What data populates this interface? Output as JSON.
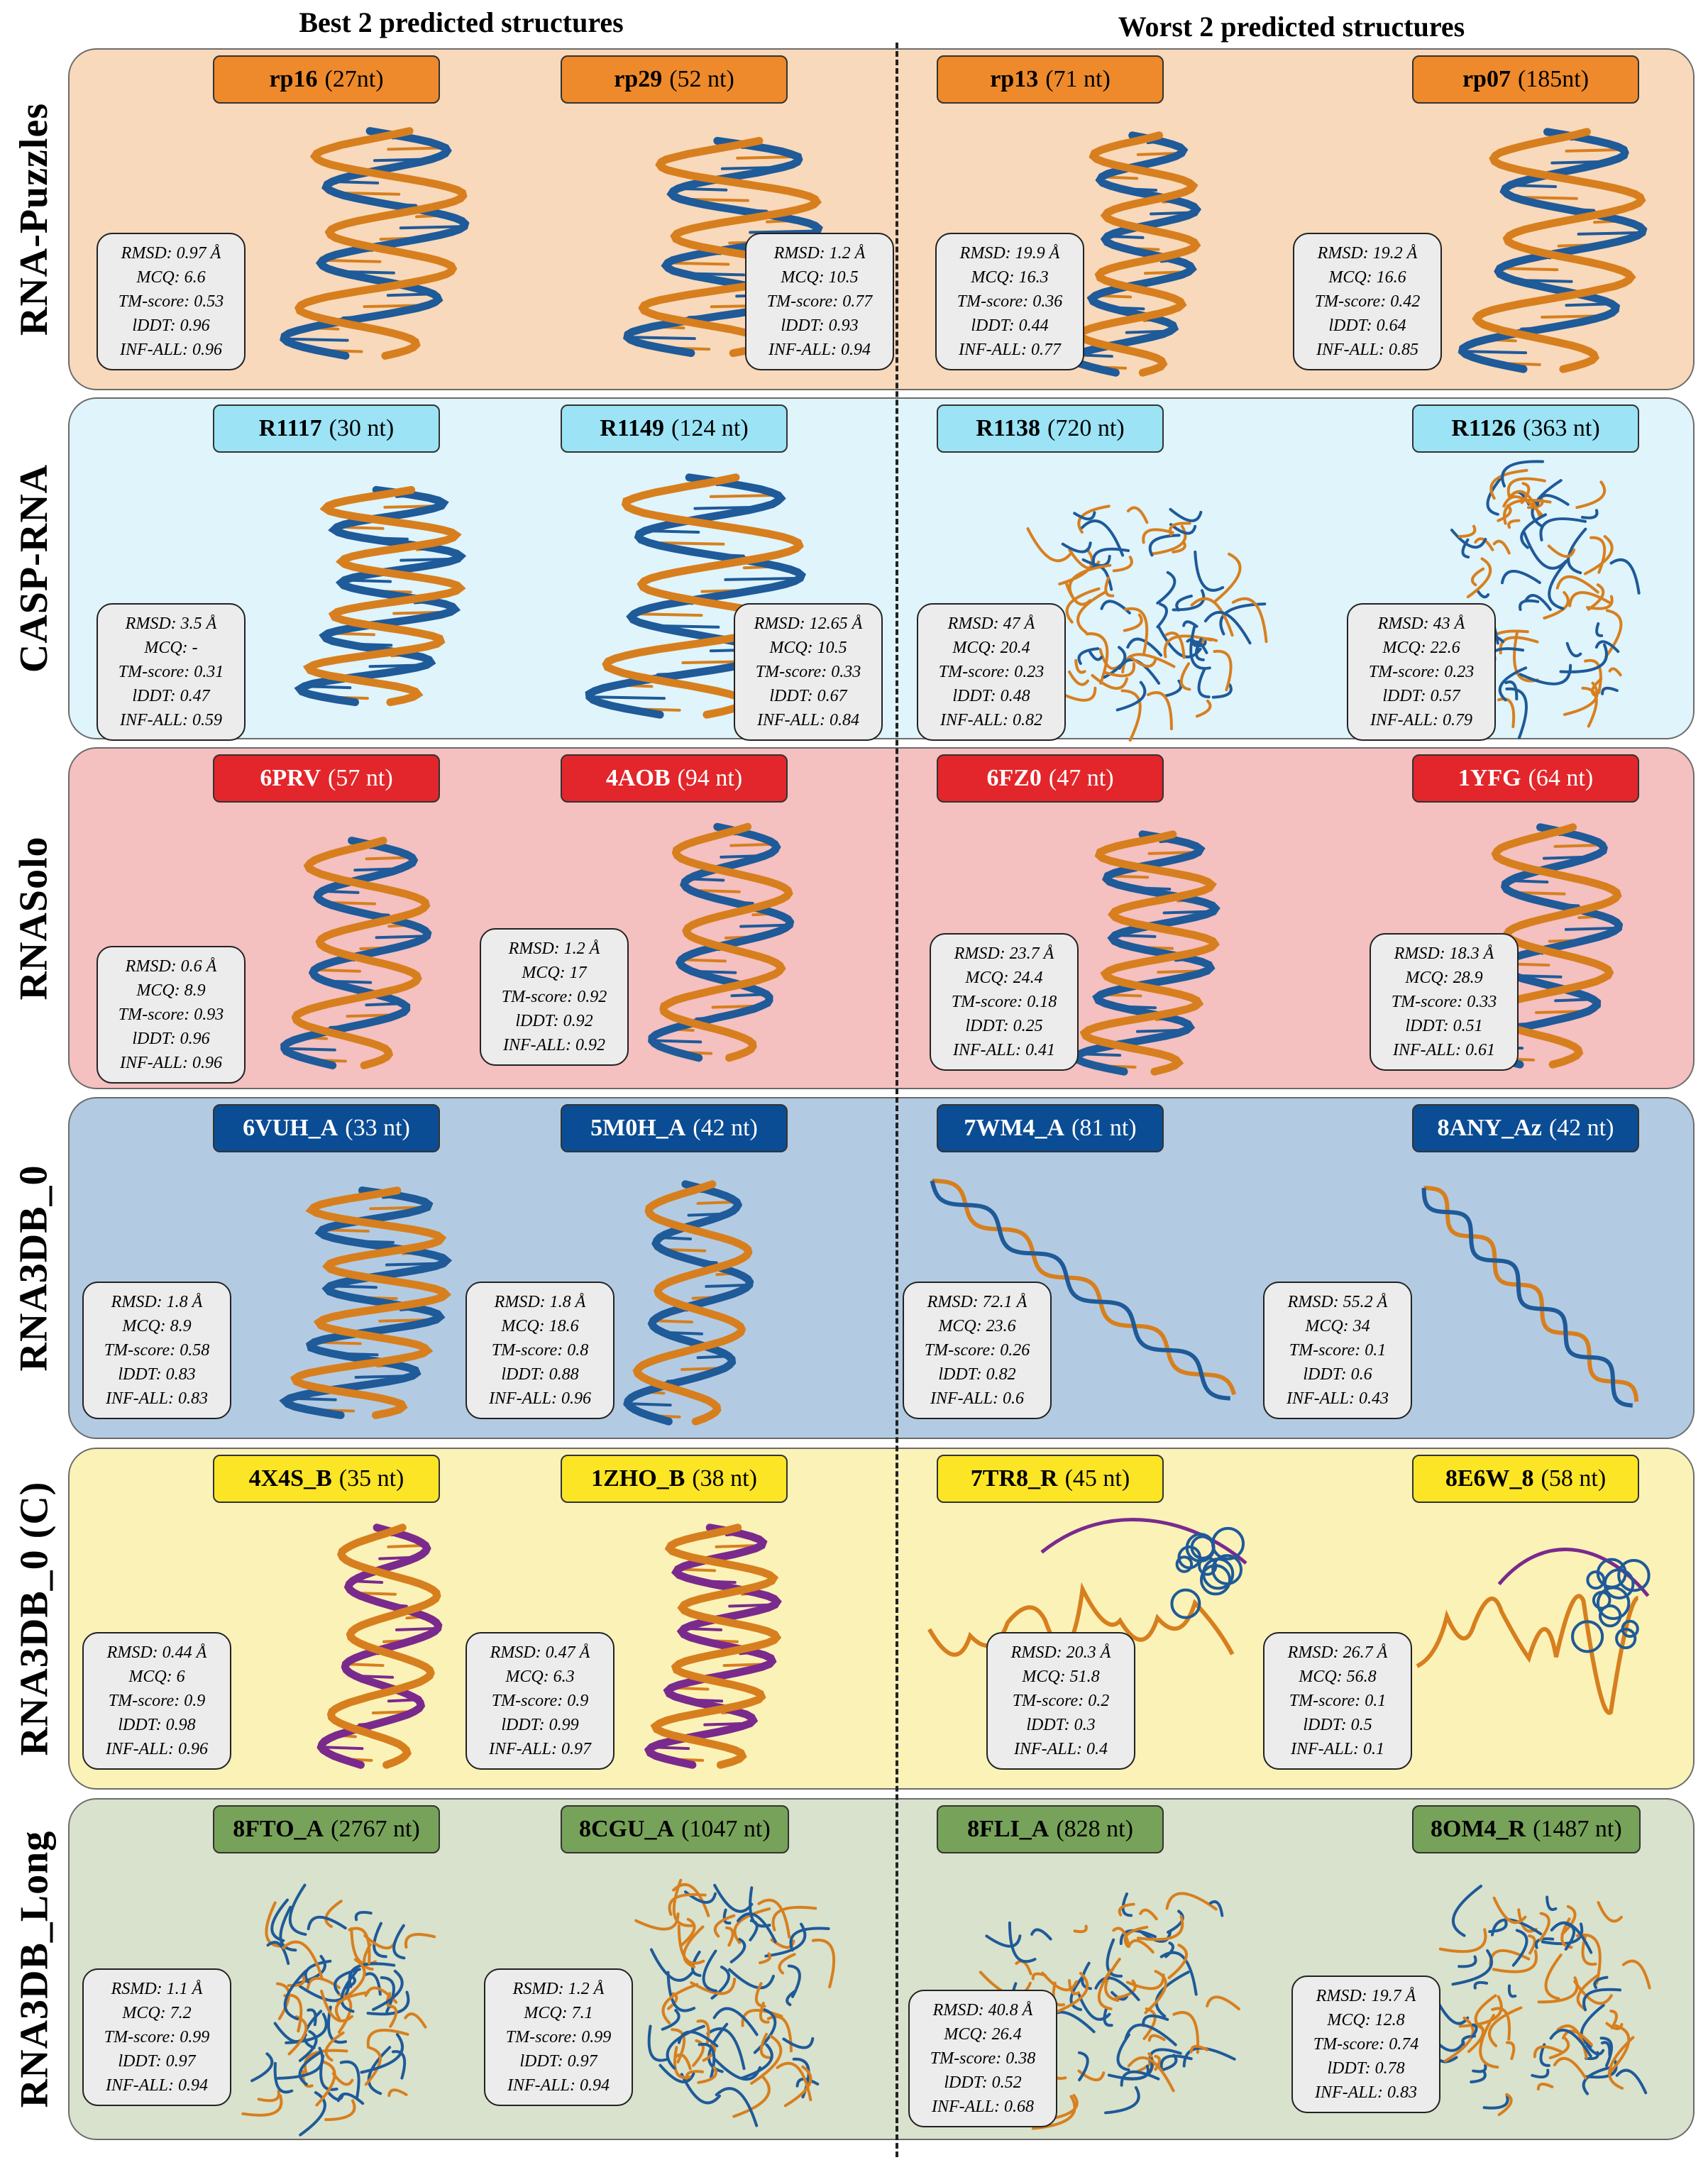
{
  "headers": {
    "best": "Best 2 predicted structures",
    "worst": "Worst 2 predicted structures"
  },
  "colors": {
    "native_strand": "#1f5a99",
    "predicted_strand": "#d77f1e",
    "alt_strand": "#7a2a8c"
  },
  "rows": [
    {
      "label": "RNA-Puzzles",
      "panel_color": "#f8d9bb",
      "tag_color": "#ee8a2b",
      "tag_text_color": "#000000",
      "entries": [
        {
          "id": "rp16",
          "length": "(27nt)",
          "metrics": [
            "RMSD: 0.97 Å",
            "MCQ: 6.6",
            "TM-score: 0.53",
            "lDDT: 0.96",
            "INF-ALL: 0.96"
          ]
        },
        {
          "id": "rp29",
          "length": "(52 nt)",
          "metrics": [
            "RMSD: 1.2 Å",
            "MCQ: 10.5",
            "TM-score: 0.77",
            "lDDT: 0.93",
            "INF-ALL: 0.94"
          ]
        },
        {
          "id": "rp13",
          "length": "(71 nt)",
          "metrics": [
            "RMSD: 19.9 Å",
            "MCQ: 16.3",
            "TM-score: 0.36",
            "lDDT: 0.44",
            "INF-ALL: 0.77"
          ]
        },
        {
          "id": "rp07",
          "length": "(185nt)",
          "metrics": [
            "RMSD: 19.2 Å",
            "MCQ: 16.6",
            "TM-score: 0.42",
            "lDDT: 0.64",
            "INF-ALL: 0.85"
          ]
        }
      ]
    },
    {
      "label": "CASP-RNA",
      "panel_color": "#dff4fb",
      "tag_color": "#9be3f5",
      "tag_text_color": "#000000",
      "entries": [
        {
          "id": "R1117",
          "length": "(30 nt)",
          "metrics": [
            "RMSD: 3.5 Å",
            "MCQ: -",
            "TM-score: 0.31",
            "lDDT: 0.47",
            "INF-ALL: 0.59"
          ]
        },
        {
          "id": "R1149",
          "length": "(124 nt)",
          "metrics": [
            "RMSD: 12.65 Å",
            "MCQ: 10.5",
            "TM-score: 0.33",
            "lDDT: 0.67",
            "INF-ALL: 0.84"
          ]
        },
        {
          "id": "R1138",
          "length": "(720 nt)",
          "metrics": [
            "RMSD: 47 Å",
            "MCQ: 20.4",
            "TM-score: 0.23",
            "lDDT: 0.48",
            "INF-ALL: 0.82"
          ]
        },
        {
          "id": "R1126",
          "length": "(363 nt)",
          "metrics": [
            "RMSD: 43 Å",
            "MCQ: 22.6",
            "TM-score: 0.23",
            "lDDT: 0.57",
            "INF-ALL: 0.79"
          ]
        }
      ]
    },
    {
      "label": "RNASolo",
      "panel_color": "#f4c0c0",
      "tag_color": "#e3262b",
      "tag_text_color": "#ffffff",
      "entries": [
        {
          "id": "6PRV",
          "length": "(57 nt)",
          "metrics": [
            "RMSD: 0.6 Å",
            "MCQ: 8.9",
            "TM-score: 0.93",
            "lDDT: 0.96",
            "INF-ALL: 0.96"
          ]
        },
        {
          "id": "4AOB",
          "length": "(94 nt)",
          "metrics": [
            "RMSD: 1.2 Å",
            "MCQ: 17",
            "TM-score: 0.92",
            "lDDT: 0.92",
            "INF-ALL: 0.92"
          ]
        },
        {
          "id": "6FZ0",
          "length": "(47 nt)",
          "metrics": [
            "RMSD: 23.7 Å",
            "MCQ: 24.4",
            "TM-score: 0.18",
            "lDDT: 0.25",
            "INF-ALL: 0.41"
          ]
        },
        {
          "id": "1YFG",
          "length": "(64 nt)",
          "metrics": [
            "RMSD: 18.3 Å",
            "MCQ: 28.9",
            "TM-score: 0.33",
            "lDDT: 0.51",
            "INF-ALL: 0.61"
          ]
        }
      ]
    },
    {
      "label": "RNA3DB_0",
      "panel_color": "#b3cbe2",
      "tag_color": "#0b4d94",
      "tag_text_color": "#ffffff",
      "entries": [
        {
          "id": "6VUH_A",
          "length": "(33 nt)",
          "metrics": [
            "RMSD: 1.8 Å",
            "MCQ: 8.9",
            "TM-score: 0.58",
            "lDDT: 0.83",
            "INF-ALL: 0.83"
          ]
        },
        {
          "id": "5M0H_A",
          "length": "(42 nt)",
          "metrics": [
            "RMSD: 1.8 Å",
            "MCQ: 18.6",
            "TM-score: 0.8",
            "lDDT: 0.88",
            "INF-ALL: 0.96"
          ]
        },
        {
          "id": "7WM4_A",
          "length": "(81 nt)",
          "metrics": [
            "RMSD: 72.1 Å",
            "MCQ: 23.6",
            "TM-score: 0.26",
            "lDDT: 0.82",
            "INF-ALL: 0.6"
          ]
        },
        {
          "id": "8ANY_Az",
          "length": "(42 nt)",
          "metrics": [
            "RMSD: 55.2 Å",
            "MCQ: 34",
            "TM-score: 0.1",
            "lDDT: 0.6",
            "INF-ALL: 0.43"
          ]
        }
      ]
    },
    {
      "label": "RNA3DB_0 (C)",
      "panel_color": "#fbf2b8",
      "tag_color": "#fbe525",
      "tag_text_color": "#000000",
      "entries": [
        {
          "id": "4X4S_B",
          "length": "(35 nt)",
          "metrics": [
            "RMSD: 0.44 Å",
            "MCQ: 6",
            "TM-score: 0.9",
            "lDDT: 0.98",
            "INF-ALL: 0.96"
          ]
        },
        {
          "id": "1ZHO_B",
          "length": "(38 nt)",
          "metrics": [
            "RMSD: 0.47 Å",
            "MCQ: 6.3",
            "TM-score: 0.9",
            "lDDT: 0.99",
            "INF-ALL: 0.97"
          ]
        },
        {
          "id": "7TR8_R",
          "length": "(45 nt)",
          "metrics": [
            "RMSD: 20.3 Å",
            "MCQ: 51.8",
            "TM-score: 0.2",
            "lDDT: 0.3",
            "INF-ALL: 0.4"
          ]
        },
        {
          "id": "8E6W_8",
          "length": "(58 nt)",
          "metrics": [
            "RMSD: 26.7 Å",
            "MCQ: 56.8",
            "TM-score: 0.1",
            "lDDT: 0.5",
            "INF-ALL: 0.1"
          ]
        }
      ]
    },
    {
      "label": "RNA3DB_Long",
      "panel_color": "#d9e2cc",
      "tag_color": "#77a25a",
      "tag_text_color": "#000000",
      "entries": [
        {
          "id": "8FTO_A",
          "length": "(2767 nt)",
          "metrics": [
            "RSMD: 1.1 Å",
            "MCQ: 7.2",
            "TM-score: 0.99",
            "lDDT: 0.97",
            "INF-ALL: 0.94"
          ]
        },
        {
          "id": "8CGU_A",
          "length": "(1047 nt)",
          "metrics": [
            "RSMD: 1.2 Å",
            "MCQ: 7.1",
            "TM-score: 0.99",
            "lDDT: 0.97",
            "INF-ALL: 0.94"
          ]
        },
        {
          "id": "8FLI_A",
          "length": "(828 nt)",
          "metrics": [
            "RMSD: 40.8 Å",
            "MCQ: 26.4",
            "TM-score: 0.38",
            "lDDT: 0.52",
            "INF-ALL: 0.68"
          ]
        },
        {
          "id": "8OM4_R",
          "length": "(1487 nt)",
          "metrics": [
            "RMSD: 19.7 Å",
            "MCQ: 12.8",
            "TM-score: 0.74",
            "lDDT: 0.78",
            "INF-ALL: 0.83"
          ]
        }
      ]
    }
  ]
}
